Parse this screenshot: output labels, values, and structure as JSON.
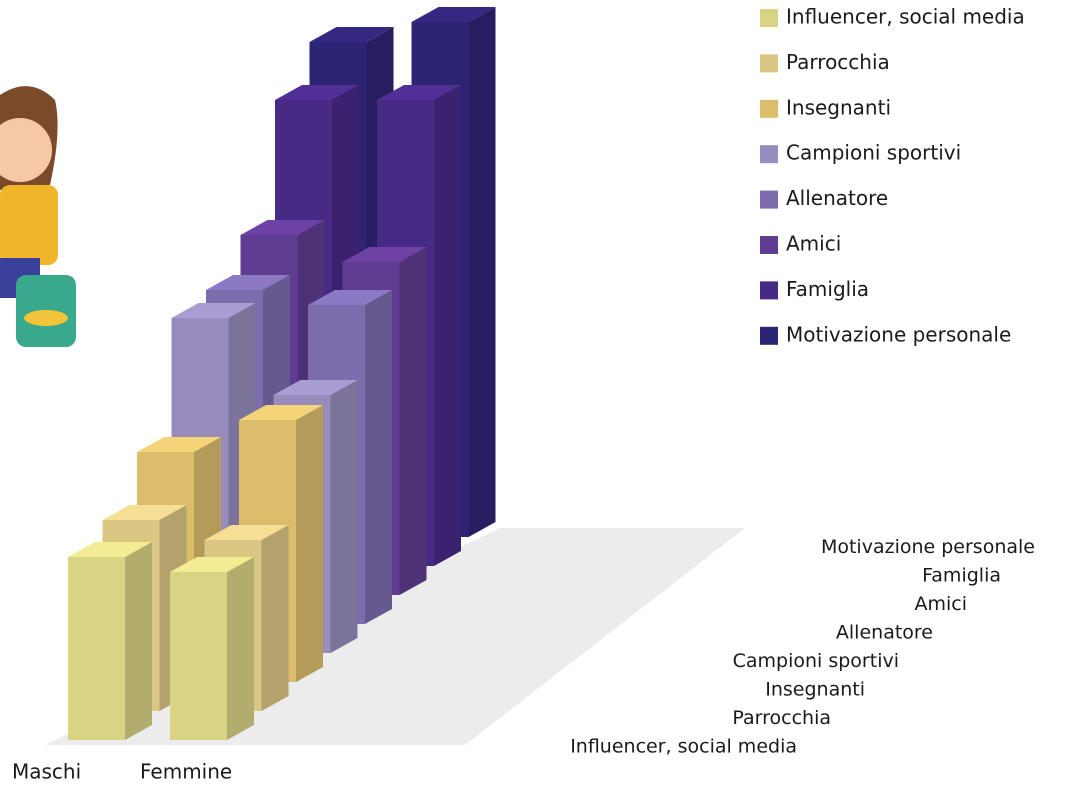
{
  "chart_data": {
    "type": "bar3d",
    "categories": [
      "Maschi",
      "Femmine"
    ],
    "series": [
      {
        "name": "Influencer, social media",
        "color": "#d9d384",
        "values": [
          183,
          168
        ]
      },
      {
        "name": "Parrocchia",
        "color": "#dcc684",
        "values": [
          191,
          171
        ]
      },
      {
        "name": "Insegnanti",
        "color": "#dbbd6c",
        "values": [
          230,
          262
        ]
      },
      {
        "name": "Campioni sportivi",
        "color": "#978cbc",
        "values": [
          335,
          258
        ]
      },
      {
        "name": "Allenatore",
        "color": "#7c6cae",
        "values": [
          334,
          319
        ]
      },
      {
        "name": "Amici",
        "color": "#603c92",
        "values": [
          360,
          333
        ]
      },
      {
        "name": "Famiglia",
        "color": "#472a86",
        "values": [
          466,
          466
        ]
      },
      {
        "name": "Motivazione personale",
        "color": "#2e2474",
        "values": [
          495,
          515
        ]
      }
    ],
    "legend": "top-right"
  }
}
